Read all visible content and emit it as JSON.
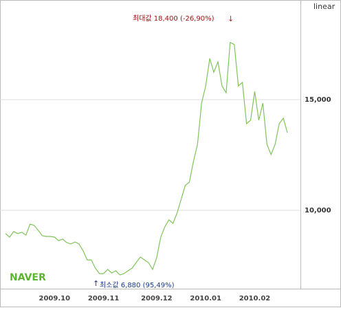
{
  "chart_data": {
    "type": "line",
    "scale_label": "linear",
    "logo": "NAVER",
    "annotations": [
      "최대값 18,400 (-26,90%)",
      "최소값 6,880 (95,49%)"
    ],
    "color": "#7fc45a",
    "categories": [
      null,
      null,
      null,
      null,
      null,
      null,
      null,
      null,
      null,
      null,
      null,
      null,
      "2009.10",
      null,
      null,
      null,
      null,
      null,
      null,
      null,
      null,
      null,
      null,
      null,
      "2009.11",
      null,
      null,
      null,
      null,
      null,
      null,
      null,
      null,
      null,
      null,
      null,
      null,
      "2009.12",
      null,
      null,
      null,
      null,
      null,
      null,
      null,
      null,
      null,
      null,
      null,
      "2010.01",
      null,
      null,
      null,
      null,
      null,
      null,
      null,
      null,
      null,
      null,
      null,
      "2010.02",
      null,
      null,
      null,
      null,
      null,
      null,
      null,
      null
    ],
    "values": [
      8950,
      8790,
      9040,
      8950,
      9010,
      8880,
      9380,
      9320,
      9100,
      8850,
      8820,
      8820,
      8790,
      8630,
      8700,
      8540,
      8480,
      8570,
      8480,
      8170,
      7760,
      7760,
      7390,
      7140,
      7140,
      7330,
      7170,
      7270,
      7080,
      7140,
      7270,
      7390,
      7640,
      7890,
      7760,
      7640,
      7330,
      7860,
      8790,
      9250,
      9570,
      9410,
      9880,
      10500,
      11120,
      11270,
      12200,
      12980,
      14840,
      15620,
      16860,
      16240,
      16710,
      15620,
      15310,
      17580,
      17490,
      15620,
      15780,
      13910,
      14070,
      15370,
      14070,
      14840,
      12980,
      12520,
      12980,
      13910,
      14160,
      13510
    ],
    "ylim": [
      6460,
      19500
    ],
    "yticks": [
      {
        "value": 10000,
        "label": "10,000"
      },
      {
        "value": 15000,
        "label": "15,000"
      }
    ],
    "grid": true
  }
}
